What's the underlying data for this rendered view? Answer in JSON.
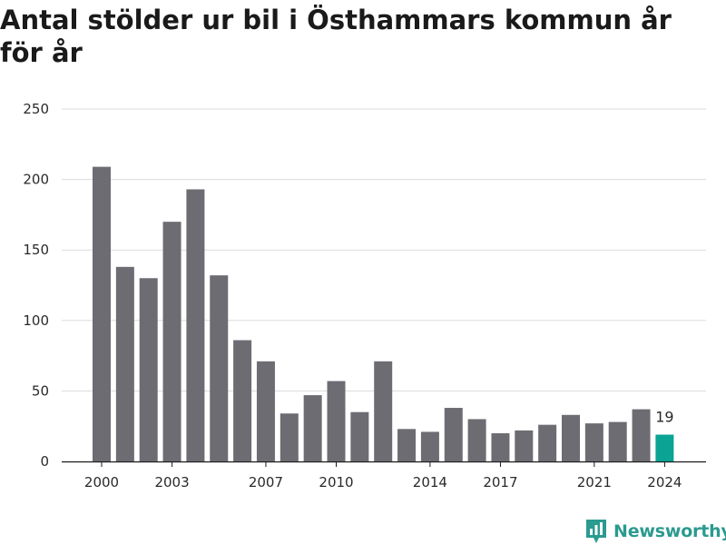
{
  "title": "Antal stölder ur bil i Östhammars kommun år för år",
  "brand": {
    "name": "Newsworthy",
    "icon": "bar-chart-logo-icon",
    "color": "#2b9a8f"
  },
  "colors": {
    "bar": "#6d6c72",
    "highlight": "#0aa394",
    "grid": "#dcdcdc"
  },
  "chart_data": {
    "type": "bar",
    "title": "Antal stölder ur bil i Östhammars kommun år för år",
    "xlabel": "",
    "ylabel": "",
    "categories": [
      "2000",
      "2001",
      "2002",
      "2003",
      "2004",
      "2005",
      "2006",
      "2007",
      "2008",
      "2009",
      "2010",
      "2011",
      "2012",
      "2013",
      "2014",
      "2015",
      "2016",
      "2017",
      "2018",
      "2019",
      "2020",
      "2021",
      "2022",
      "2023",
      "2024"
    ],
    "values": [
      209,
      138,
      130,
      170,
      193,
      132,
      86,
      71,
      34,
      47,
      57,
      35,
      71,
      23,
      21,
      38,
      30,
      20,
      22,
      26,
      33,
      27,
      28,
      37,
      19
    ],
    "x_tick_labels": [
      "2000",
      "2003",
      "2007",
      "2010",
      "2014",
      "2017",
      "2021",
      "2024"
    ],
    "y_ticks": [
      0,
      50,
      100,
      150,
      200,
      250
    ],
    "ylim": [
      0,
      250
    ],
    "highlight": {
      "category": "2024",
      "label": "19"
    },
    "grid": true,
    "legend": "none"
  }
}
